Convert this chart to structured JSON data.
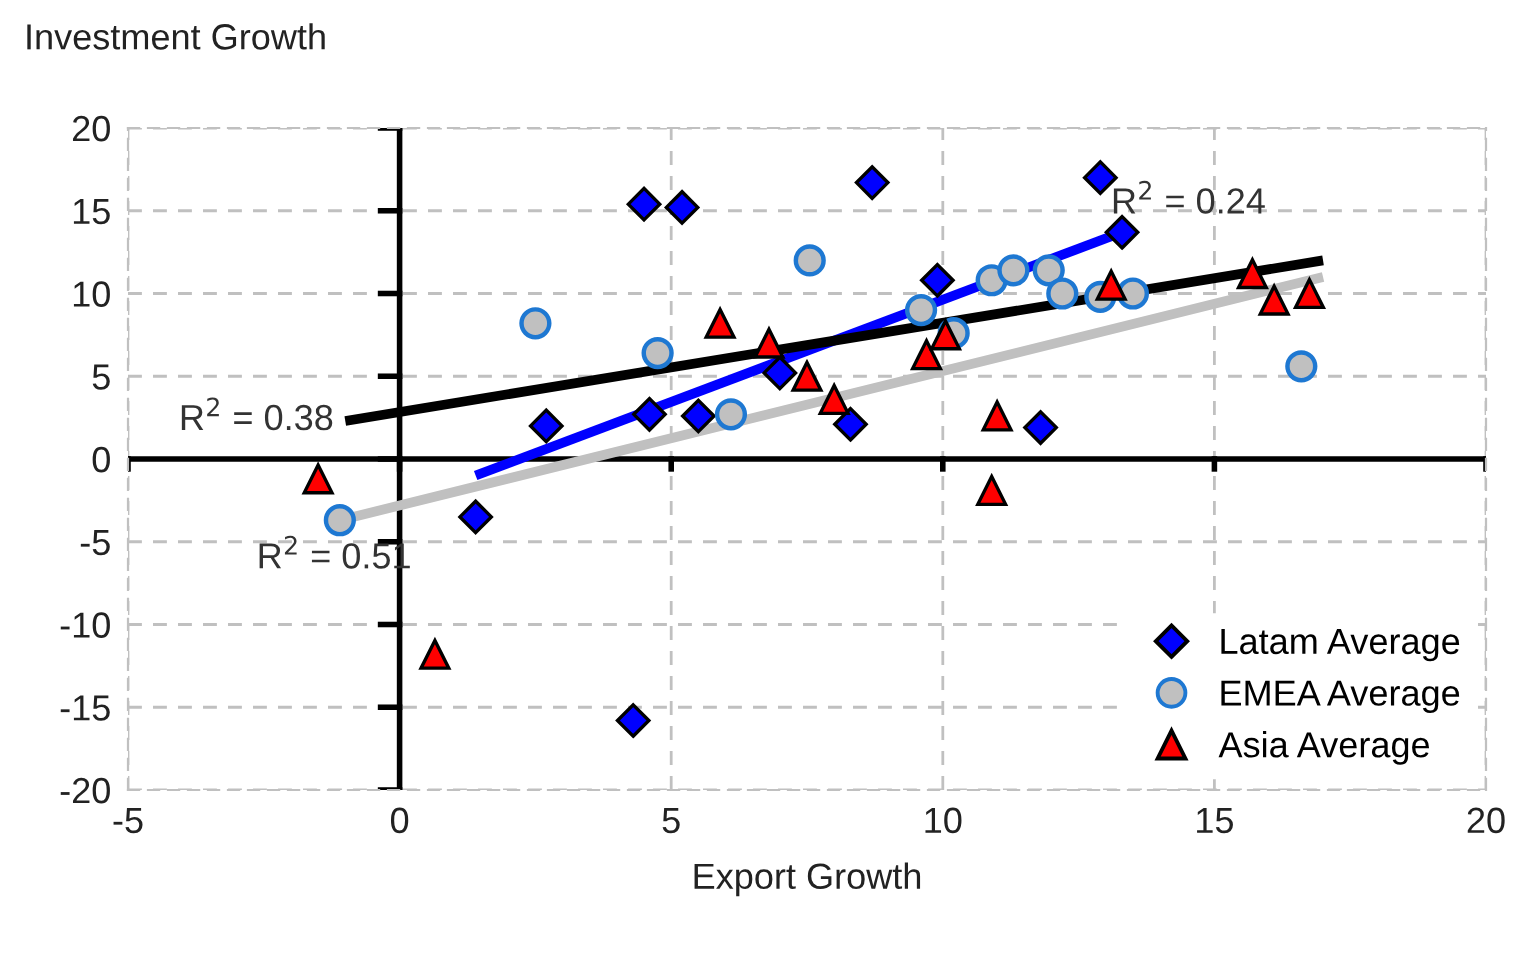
{
  "chart_data": {
    "type": "scatter",
    "ylabel": "Investment Growth",
    "xlabel": "Export Growth",
    "xlim": [
      -5,
      20
    ],
    "xticks": [
      -5,
      0,
      5,
      10,
      15,
      20
    ],
    "ylim": [
      -20,
      20
    ],
    "yticks": [
      -20,
      -15,
      -10,
      -5,
      0,
      5,
      10,
      15,
      20
    ],
    "grid": true,
    "legend": "bottom right",
    "series": [
      {
        "name": "Latam Average",
        "color": "#0000ff",
        "marker": "diamond",
        "x": [
          4.5,
          5.2,
          8.7,
          12.9,
          13.3,
          9.9,
          7.0,
          8.3,
          11.8,
          5.5,
          2.7,
          4.6,
          1.4,
          4.3
        ],
        "values": [
          15.4,
          15.2,
          16.7,
          17.0,
          13.7,
          10.8,
          5.2,
          2.1,
          1.9,
          2.6,
          2.0,
          2.7,
          -3.5,
          -15.8
        ]
      },
      {
        "name": "EMEA Average",
        "color": "#c0c0c0",
        "marker": "circle",
        "x": [
          2.5,
          4.75,
          -1.1,
          7.55,
          6.1,
          9.6,
          10.2,
          10.9,
          11.3,
          11.95,
          12.2,
          12.9,
          13.5,
          16.6
        ],
        "values": [
          8.2,
          6.4,
          -3.7,
          12.0,
          2.7,
          9.0,
          7.6,
          10.8,
          11.4,
          11.4,
          10.0,
          9.8,
          10.0,
          5.6
        ]
      },
      {
        "name": "Asia Average",
        "color": "#ff0000",
        "marker": "triangle",
        "x": [
          -1.5,
          0.65,
          5.9,
          6.8,
          7.5,
          8.0,
          9.7,
          10.05,
          11.0,
          10.9,
          13.1,
          15.7,
          16.1,
          16.75
        ],
        "values": [
          -1.2,
          -11.8,
          8.2,
          7.0,
          5.0,
          3.6,
          6.3,
          7.5,
          2.6,
          -1.9,
          10.5,
          11.2,
          9.6,
          10.0
        ]
      },
      {
        "type": "line",
        "color": "#0000ff",
        "x": [
          1.4,
          13.3
        ],
        "values": [
          -1.0,
          13.7
        ]
      },
      {
        "type": "line",
        "color": "#c0c0c0",
        "x": [
          -1.1,
          17.0
        ],
        "values": [
          -3.7,
          11.0
        ]
      },
      {
        "type": "line",
        "color": "#000000",
        "x": [
          -1.0,
          17.0
        ],
        "values": [
          2.3,
          12.0
        ]
      }
    ],
    "annotations": [
      {
        "text": "R$^{2}$ = 0.24",
        "x": 13.3,
        "y": 13.7
      },
      {
        "text": "R$^{2}$ = 0.51",
        "x": -1.1,
        "y": -3.7
      },
      {
        "text": "R$^{2}$ = 0.38",
        "x": -1.0,
        "y": 2.3
      }
    ]
  }
}
